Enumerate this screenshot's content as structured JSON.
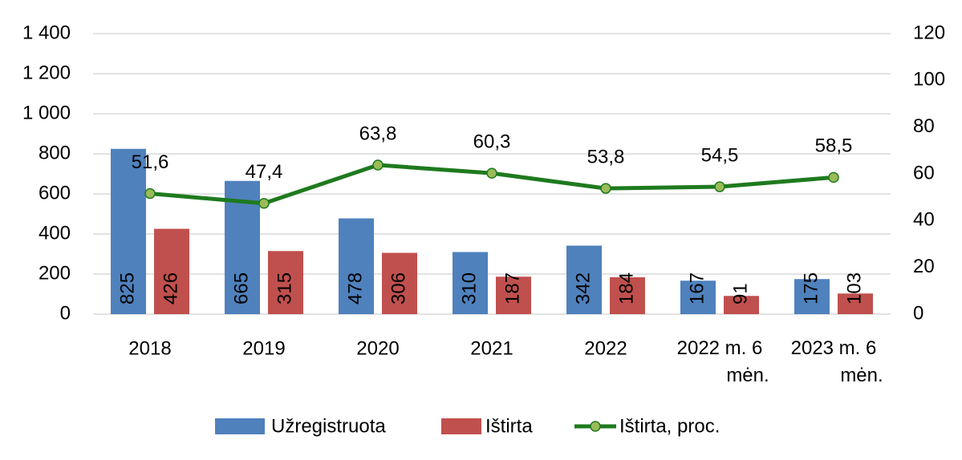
{
  "chart_data": {
    "type": "bar_line",
    "categories": [
      "2018",
      "2019",
      "2020",
      "2021",
      "2022",
      "2022 m. 6 mėn.",
      "2023 m. 6 mėn."
    ],
    "series": [
      {
        "name": "Užregistruota",
        "color": "#4f81bd",
        "values": [
          825,
          665,
          478,
          310,
          342,
          167,
          175
        ]
      },
      {
        "name": "Ištirta",
        "color": "#c0504d",
        "values": [
          426,
          315,
          306,
          187,
          184,
          91,
          103
        ]
      },
      {
        "name": "Ištirta, proc.",
        "color": "#1e7a1e",
        "marker_color": "#9bbb59",
        "axis": "y2",
        "type": "line",
        "values": [
          51.6,
          47.4,
          63.8,
          60.3,
          53.8,
          54.5,
          58.5
        ],
        "value_labels": [
          "51,6",
          "47,4",
          "63,8",
          "60,3",
          "53,8",
          "54,5",
          "58,5"
        ]
      }
    ],
    "ylim": [
      0,
      1400
    ],
    "yticks": [
      0,
      200,
      400,
      600,
      800,
      {
        "value": 1000,
        "label": "1 000"
      },
      {
        "value": 1200,
        "label": "1 200"
      },
      {
        "value": 1400,
        "label": "1 400"
      }
    ],
    "y2lim": [
      0,
      120
    ],
    "y2ticks": [
      0,
      20,
      40,
      60,
      80,
      100,
      120
    ],
    "grid": true,
    "legend": "bottom"
  }
}
